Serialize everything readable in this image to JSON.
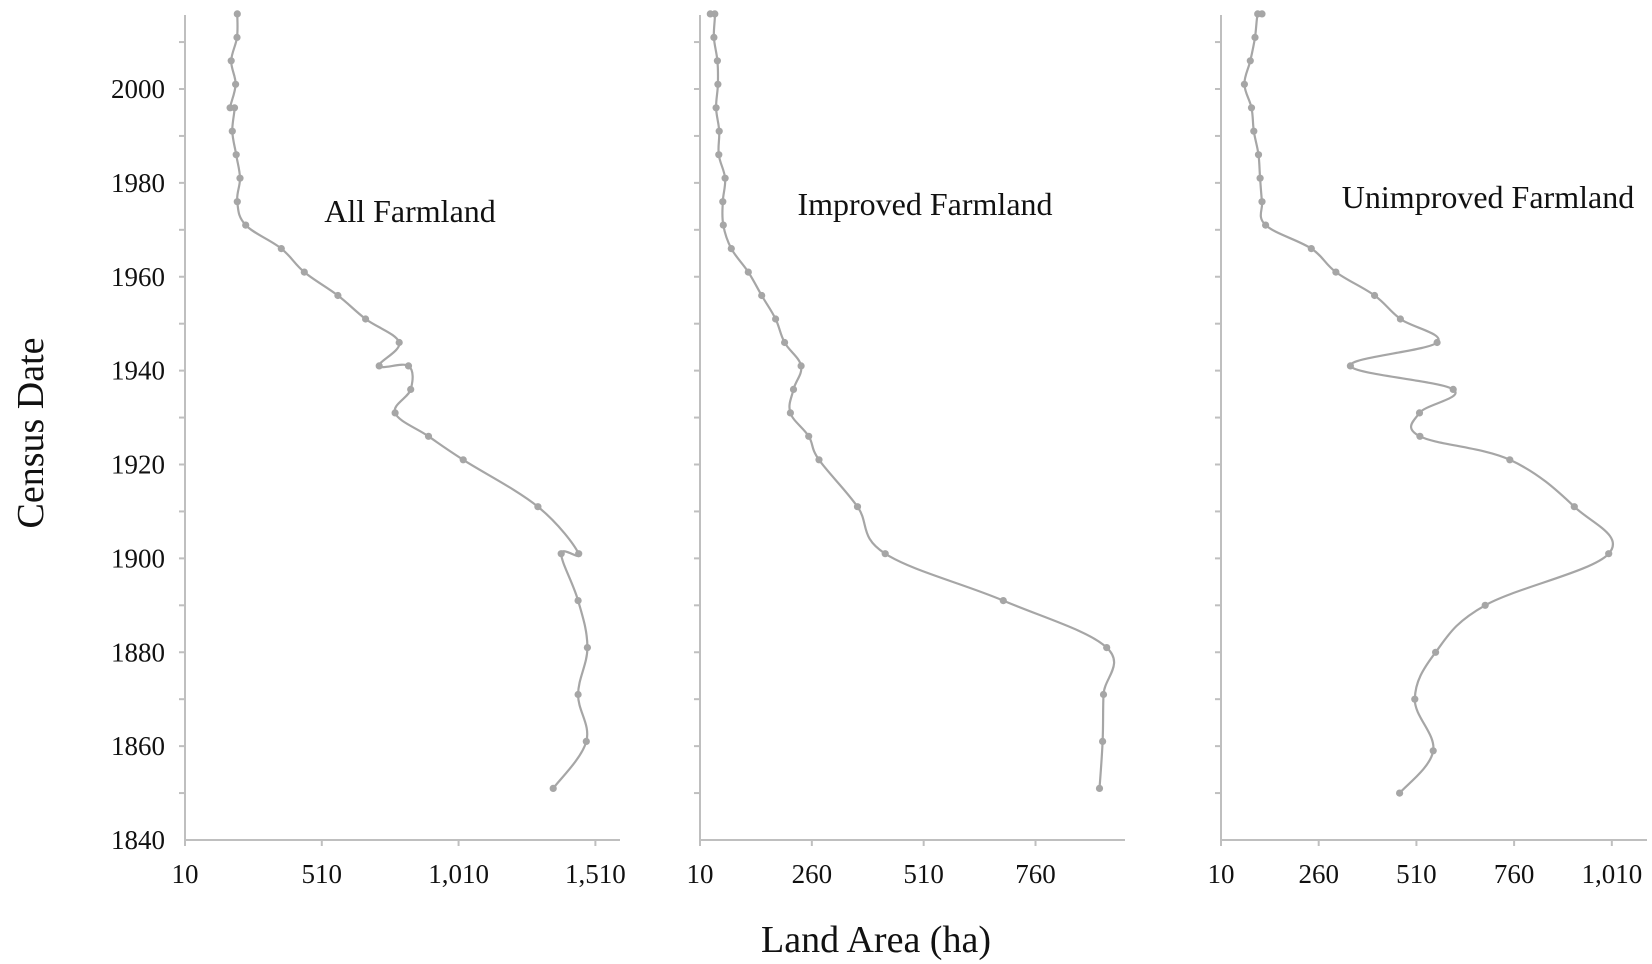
{
  "ylabel": "Census Date",
  "xlabel": "Land Area (ha)",
  "y_ticks": [
    "1840",
    "1860",
    "1880",
    "1900",
    "1920",
    "1940",
    "1960",
    "1980",
    "2000"
  ],
  "colors": {
    "line": "#a6a6a6",
    "marker": "#a6a6a6",
    "axis": "#bfbfbf",
    "text": "#111111"
  },
  "chart_data": [
    {
      "type": "line",
      "title": "All Farmland",
      "x_ticks": [
        "10",
        "510",
        "1,010",
        "1,510"
      ],
      "xlim": [
        10,
        1600
      ],
      "ylim": [
        1840,
        2017
      ],
      "x": [
        1356,
        1477,
        1447,
        1481,
        1447,
        1385,
        1449,
        1300,
        1027,
        900,
        778,
        835,
        827,
        720,
        793,
        670,
        569,
        446,
        362,
        232,
        201,
        211,
        197,
        183,
        191,
        175,
        195,
        179,
        200,
        201
      ],
      "y": [
        1851,
        1861,
        1871,
        1881,
        1891,
        1901,
        1901,
        1911,
        1921,
        1926,
        1931,
        1936,
        1941,
        1941,
        1946,
        1951,
        1956,
        1961,
        1966,
        1971,
        1976,
        1981,
        1986,
        1991,
        1996,
        1996,
        2001,
        2006,
        2011,
        2016
      ]
    },
    {
      "type": "line",
      "title": "Improved Farmland",
      "x_ticks": [
        "10",
        "260",
        "510",
        "760"
      ],
      "xlim": [
        10,
        960
      ],
      "ylim": [
        1840,
        2017
      ],
      "x": [
        903,
        910,
        912,
        919,
        688,
        424,
        362,
        276,
        253,
        212,
        219,
        236,
        199,
        179,
        148,
        118,
        80,
        62,
        61,
        66,
        52,
        53,
        46,
        50,
        49,
        41,
        43,
        33
      ],
      "y": [
        1851,
        1861,
        1871,
        1881,
        1891,
        1901,
        1911,
        1921,
        1926,
        1931,
        1936,
        1941,
        1946,
        1951,
        1956,
        1961,
        1966,
        1971,
        1976,
        1981,
        1986,
        1991,
        1996,
        2001,
        2006,
        2011,
        2016,
        2016
      ]
    },
    {
      "type": "line",
      "title": "Unimproved Farmland",
      "x_ticks": [
        "10",
        "260",
        "510",
        "760",
        "1,010"
      ],
      "xlim": [
        10,
        1100
      ],
      "ylim": [
        1840,
        2017
      ],
      "x": [
        467,
        553,
        506,
        559,
        686,
        1002,
        914,
        749,
        519,
        518,
        604,
        341,
        563,
        469,
        403,
        304,
        241,
        124,
        115,
        110,
        106,
        94,
        88,
        70,
        85,
        97,
        104,
        115
      ],
      "y": [
        1850,
        1859,
        1870,
        1880,
        1890,
        1901,
        1911,
        1921,
        1926,
        1931,
        1936,
        1941,
        1946,
        1951,
        1956,
        1961,
        1966,
        1971,
        1976,
        1981,
        1986,
        1991,
        1996,
        2001,
        2006,
        2011,
        2016,
        2016
      ]
    }
  ]
}
